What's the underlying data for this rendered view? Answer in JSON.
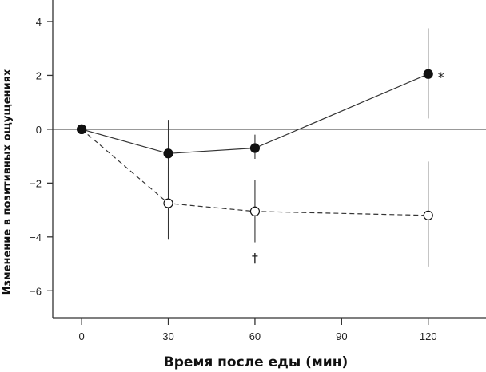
{
  "chart_data": {
    "type": "line",
    "title": "",
    "xlabel": "Время после еды (мин)",
    "ylabel": "Изменение в позитивных ощущениях",
    "x": [
      0,
      30,
      60,
      120
    ],
    "xticks": [
      0,
      30,
      60,
      90,
      120
    ],
    "yticks": [
      4,
      2,
      0,
      -2,
      -4,
      -6
    ],
    "ytick_labels": [
      "4",
      "2",
      "0",
      "−2",
      "−4",
      "−6"
    ],
    "xlim": [
      -10,
      140
    ],
    "ylim": [
      -7,
      4.8
    ],
    "grid": false,
    "reference_line": 0,
    "series": [
      {
        "style": "solid",
        "marker": "filled-circle",
        "values": [
          0,
          -0.9,
          -0.7,
          2.05
        ],
        "error": [
          [
            0,
            0
          ],
          [
            -4.1,
            0.35
          ],
          [
            -1.1,
            -0.2
          ],
          [
            0.4,
            3.75
          ]
        ]
      },
      {
        "style": "dashed",
        "marker": "open-circle",
        "values": [
          0,
          -2.75,
          -3.05,
          -3.2
        ],
        "error": [
          [
            0,
            0
          ],
          [
            -4.1,
            -1.4
          ],
          [
            -4.2,
            -1.9
          ],
          [
            -5.1,
            -1.2
          ]
        ]
      }
    ],
    "annotations": [
      {
        "text": "*",
        "x": 120,
        "y": 2.05,
        "series": 0
      },
      {
        "text": "†",
        "x": 60,
        "y": -4.7,
        "series": 1
      }
    ]
  }
}
